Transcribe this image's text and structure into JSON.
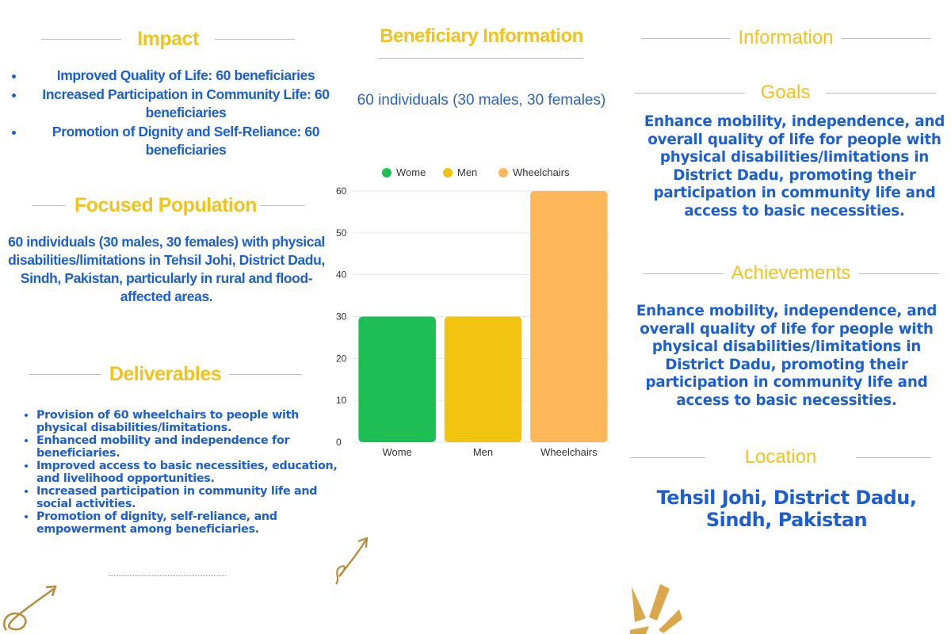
{
  "impact": {
    "title": "Impact",
    "items": [
      "Improved Quality of Life: 60 beneficiaries",
      "Increased Participation in Community Life: 60 beneficiaries",
      "Promotion of Dignity and Self-Reliance: 60 beneficiaries"
    ]
  },
  "focused_population": {
    "title": "Focused Population",
    "text": "60 individuals (30 males, 30 females) with physical disabilities/limitations in Tehsil Johi, District Dadu, Sindh, Pakistan, particularly in rural and flood-affected areas."
  },
  "deliverables": {
    "title": "Deliverables",
    "items": [
      "Provision of 60 wheelchairs to people with physical disabilities/limitations.",
      "Enhanced mobility and independence for beneficiaries.",
      "Improved access to basic necessities, education, and livelihood opportunities.",
      "Increased participation in community life and social activities.",
      "Promotion of dignity, self-reliance, and empowerment among beneficiaries."
    ]
  },
  "beneficiary": {
    "title": "Beneficiary Information",
    "subtitle": "60 individuals (30 males, 30 females)"
  },
  "information": {
    "title": "Information",
    "goals_title": "Goals",
    "goals_text": "Enhance mobility, independence, and overall quality of life for people with physical disabilities/limitations in District Dadu, promoting their participation in community life and access to basic necessities.",
    "achievements_title": "Achievements",
    "achievements_text": "Enhance mobility, independence, and overall quality of life for people with physical disabilities/limitations in District Dadu, promoting their participation in community life and access to basic necessities.",
    "location_title": "Location",
    "location_text": "Tehsil Johi, District Dadu, Sindh, Pakistan"
  },
  "colors": {
    "heading_yellow": "#f2c31b",
    "text_blue": "#1b5fd6",
    "rule_gray": "#bdbdbd"
  },
  "chart_data": {
    "type": "bar",
    "categories": [
      "Wome",
      "Men",
      "Wheelchairs"
    ],
    "values": [
      30,
      30,
      60
    ],
    "colors": [
      "#1dbf55",
      "#f1c40f",
      "#ffb75a"
    ],
    "legend": [
      "Wome",
      "Men",
      "Wheelchairs"
    ],
    "legend_position": "top",
    "ylim": [
      0,
      60
    ],
    "yticks": [
      0,
      10,
      20,
      30,
      40,
      50,
      60
    ],
    "grid": true,
    "title": "",
    "xlabel": "",
    "ylabel": ""
  }
}
